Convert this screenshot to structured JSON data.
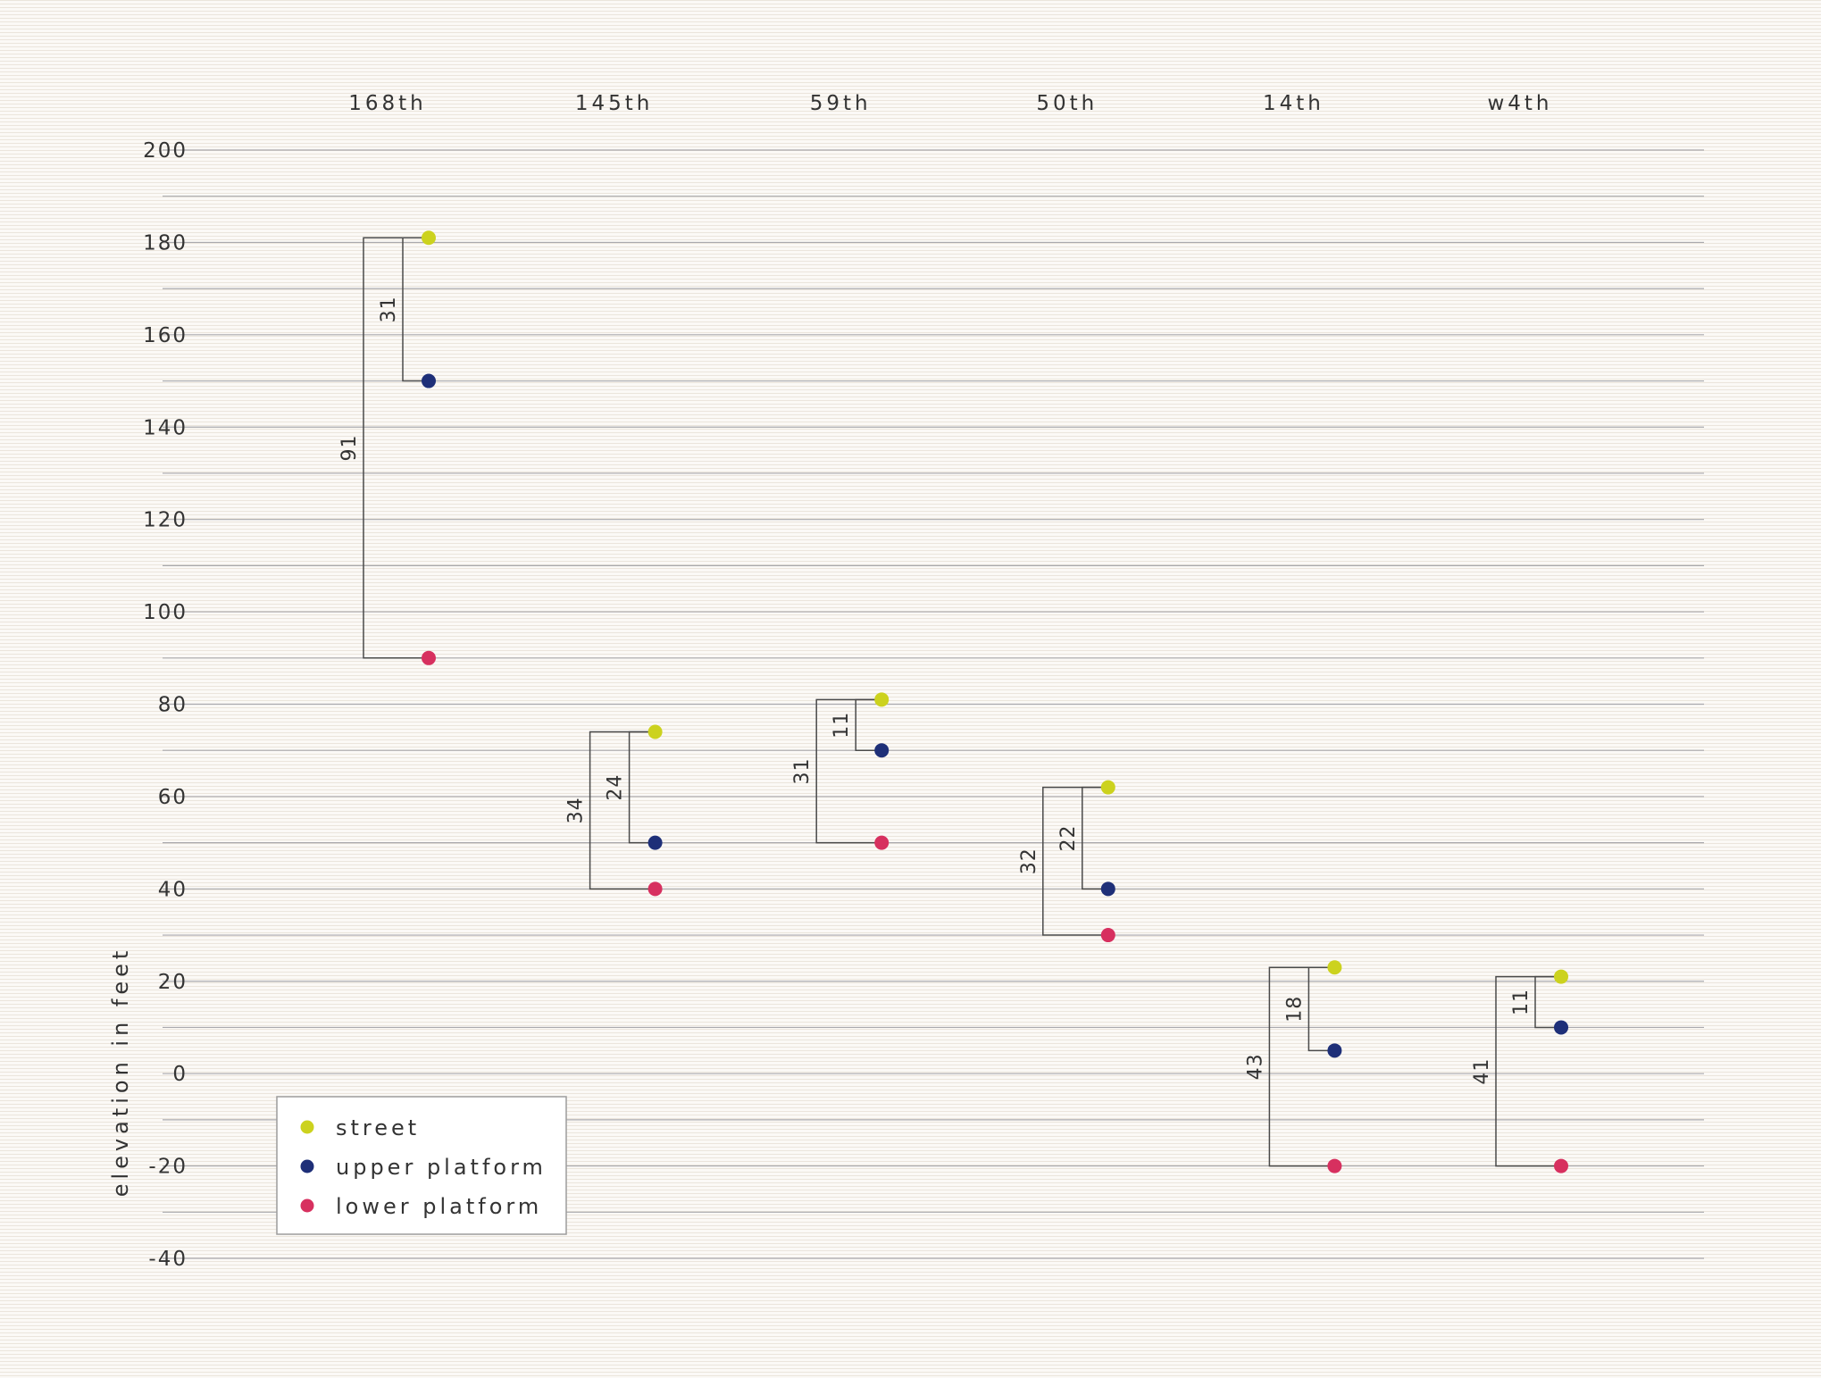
{
  "chart_data": {
    "type": "scatter",
    "ylabel": "elevation in feet",
    "ylim": [
      -40,
      200
    ],
    "yticks": [
      200,
      180,
      160,
      140,
      120,
      100,
      80,
      60,
      40,
      20,
      0,
      -20,
      -40
    ],
    "grid": true,
    "legend_position": "bottom-left",
    "categories": [
      "168th",
      "145th",
      "59th",
      "50th",
      "14th",
      "w4th"
    ],
    "series": [
      {
        "name": "street",
        "color": "#ccd21e",
        "values": [
          181,
          74,
          81,
          62,
          23,
          21
        ]
      },
      {
        "name": "upper platform",
        "color": "#1e2f78",
        "values": [
          150,
          50,
          70,
          40,
          5,
          10
        ]
      },
      {
        "name": "lower platform",
        "color": "#d7305f",
        "values": [
          90,
          40,
          50,
          30,
          -20,
          -20
        ]
      }
    ],
    "differences": [
      {
        "station": "168th",
        "street_to_upper": "31",
        "street_to_lower": "91"
      },
      {
        "station": "145th",
        "street_to_upper": "24",
        "street_to_lower": "34"
      },
      {
        "station": "59th",
        "street_to_upper": "11",
        "street_to_lower": "31"
      },
      {
        "station": "50th",
        "street_to_upper": "22",
        "street_to_lower": "32"
      },
      {
        "station": "14th",
        "street_to_upper": "18",
        "street_to_lower": "43"
      },
      {
        "station": "w4th",
        "street_to_upper": "11",
        "street_to_lower": "41"
      }
    ]
  }
}
